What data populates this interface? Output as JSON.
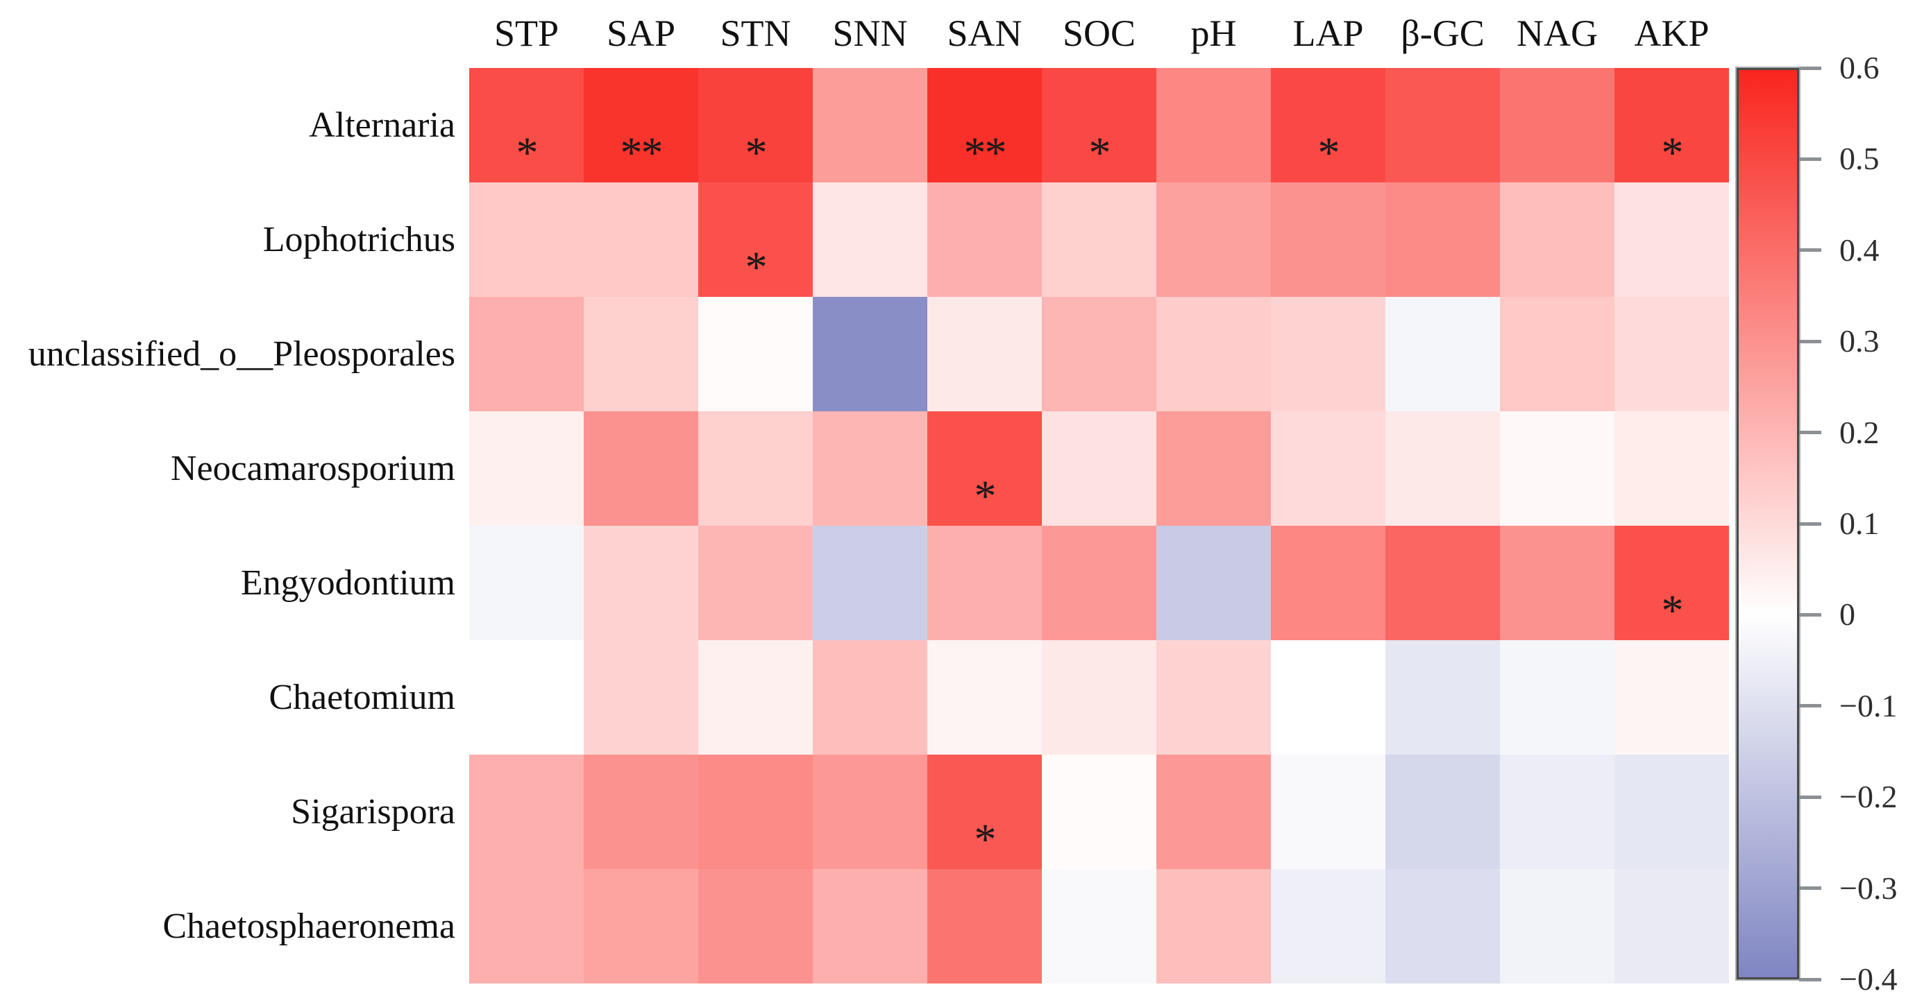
{
  "chart_data": {
    "type": "heatmap",
    "title": "",
    "columns": [
      "STP",
      "SAP",
      "STN",
      "SNN",
      "SAN",
      "SOC",
      "pH",
      "LAP",
      "β-GC",
      "NAG",
      "AKP"
    ],
    "rows": [
      "Alternaria",
      "Lophotrichus",
      "unclassified_o__Pleosporales",
      "Neocamarosporium",
      "Engyodontium",
      "Chaetomium",
      "Sigarispora",
      "Chaetosphaeronema"
    ],
    "values": [
      [
        0.49,
        0.56,
        0.52,
        0.27,
        0.57,
        0.5,
        0.33,
        0.5,
        0.46,
        0.38,
        0.51
      ],
      [
        0.15,
        0.15,
        0.48,
        0.07,
        0.22,
        0.13,
        0.26,
        0.3,
        0.32,
        0.18,
        0.08
      ],
      [
        0.22,
        0.13,
        0.01,
        -0.37,
        0.06,
        0.2,
        0.14,
        0.12,
        -0.03,
        0.15,
        0.1
      ],
      [
        0.04,
        0.3,
        0.13,
        0.2,
        0.48,
        0.08,
        0.27,
        0.1,
        0.06,
        0.02,
        0.05
      ],
      [
        -0.03,
        0.12,
        0.2,
        -0.16,
        0.22,
        0.28,
        -0.17,
        0.33,
        0.42,
        0.3,
        0.48
      ],
      [
        0.0,
        0.12,
        0.04,
        0.18,
        0.03,
        0.06,
        0.12,
        0.0,
        -0.08,
        -0.03,
        0.03
      ],
      [
        0.22,
        0.3,
        0.32,
        0.28,
        0.46,
        0.01,
        0.28,
        -0.02,
        -0.13,
        -0.06,
        -0.08
      ],
      [
        0.22,
        0.25,
        0.3,
        0.22,
        0.38,
        -0.02,
        0.18,
        -0.05,
        -0.11,
        -0.04,
        -0.07
      ]
    ],
    "significance": [
      [
        "*",
        "**",
        "*",
        "",
        "**",
        "*",
        "",
        "*",
        "",
        "",
        "*"
      ],
      [
        "",
        "",
        "*",
        "",
        "",
        "",
        "",
        "",
        "",
        "",
        ""
      ],
      [
        "",
        "",
        "",
        "",
        "",
        "",
        "",
        "",
        "",
        "",
        ""
      ],
      [
        "",
        "",
        "",
        "",
        "*",
        "",
        "",
        "",
        "",
        "",
        ""
      ],
      [
        "",
        "",
        "",
        "",
        "",
        "",
        "",
        "",
        "",
        "",
        "*"
      ],
      [
        "",
        "",
        "",
        "",
        "",
        "",
        "",
        "",
        "",
        "",
        ""
      ],
      [
        "",
        "",
        "",
        "",
        "*",
        "",
        "",
        "",
        "",
        "",
        ""
      ],
      [
        "",
        "",
        "",
        "",
        "",
        "",
        "",
        "",
        "",
        "",
        ""
      ]
    ],
    "colorbar": {
      "min": -0.4,
      "max": 0.6,
      "ticks": [
        0.6,
        0.5,
        0.4,
        0.3,
        0.2,
        0.1,
        0,
        -0.1,
        -0.2,
        -0.3,
        -0.4
      ],
      "tick_labels": [
        "0.6",
        "0.5",
        "0.4",
        "0.3",
        "0.2",
        "0.1",
        "0",
        "−0.1",
        "−0.2",
        "−0.3",
        "−0.4"
      ],
      "color_positive": "#F9251E",
      "color_zero": "#FFFFFF",
      "color_negative": "#7F85C2"
    },
    "legend_position": "right",
    "grid": false,
    "xlabel": "",
    "ylabel": ""
  }
}
